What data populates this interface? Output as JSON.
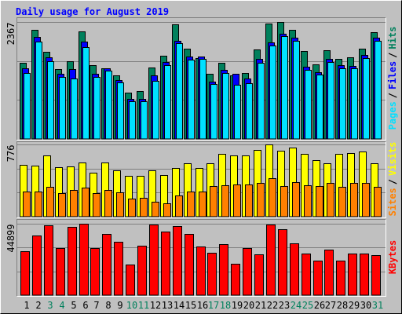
{
  "chart_data": {
    "type": "bar",
    "title": "Daily usage for August 2019",
    "categories": [
      "1",
      "2",
      "3",
      "4",
      "5",
      "6",
      "7",
      "8",
      "9",
      "10",
      "11",
      "12",
      "13",
      "14",
      "15",
      "16",
      "17",
      "18",
      "19",
      "20",
      "21",
      "22",
      "23",
      "24",
      "25",
      "26",
      "27",
      "28",
      "29",
      "30",
      "31"
    ],
    "category_colors": [
      "#000000",
      "#000000",
      "#00805c",
      "#00805c",
      "#000000",
      "#000000",
      "#000000",
      "#000000",
      "#000000",
      "#00805c",
      "#00805c",
      "#000000",
      "#000000",
      "#000000",
      "#000000",
      "#000000",
      "#00805c",
      "#00805c",
      "#000000",
      "#000000",
      "#000000",
      "#000000",
      "#000000",
      "#00805c",
      "#00805c",
      "#000000",
      "#000000",
      "#000000",
      "#000000",
      "#000000",
      "#00805c"
    ],
    "legend_separator": "/",
    "panels": [
      {
        "ylim": [
          0,
          2367
        ],
        "yticks": [
          2367
        ],
        "series": [
          {
            "name": "Hits",
            "color": "#00805c",
            "values": [
              1541,
              2208,
              1763,
              1414,
              1573,
              2176,
              1493,
              1430,
              1287,
              937,
              969,
              1446,
              1684,
              2319,
              1827,
              1636,
              1319,
              1541,
              1287,
              1334,
              1811,
              2335,
              2367,
              2208,
              1779,
              1509,
              1795,
              1620,
              1652,
              1827,
              2160
            ]
          },
          {
            "name": "Files",
            "color": "#0000ff",
            "values": [
              1430,
              2065,
              1652,
              1318,
              1414,
              1970,
              1318,
              1430,
              1191,
              811,
              811,
              1287,
              1557,
              1986,
              1668,
              1668,
              1160,
              1398,
              1319,
              1223,
              1620,
              1954,
              2129,
              2049,
              1462,
              1350,
              1620,
              1493,
              1477,
              1700,
              2049
            ]
          },
          {
            "name": "Pages",
            "color": "#00e0ff",
            "values": [
              1334,
              1970,
              1573,
              1255,
              1223,
              1859,
              1255,
              1382,
              1144,
              763,
              763,
              1176,
              1493,
              1938,
              1604,
              1620,
              1112,
              1334,
              1096,
              1128,
              1541,
              1890,
              2081,
              1986,
              1398,
              1303,
              1557,
              1430,
              1430,
              1636,
              1986
            ]
          }
        ]
      },
      {
        "ylim": [
          0,
          776
        ],
        "yticks": [
          776
        ],
        "series": [
          {
            "name": "Visits",
            "color": "#ffff00",
            "values": [
              557,
              548,
              658,
              531,
              540,
              582,
              472,
              582,
              497,
              438,
              438,
              497,
              447,
              523,
              573,
              523,
              573,
              674,
              658,
              658,
              717,
              776,
              708,
              742,
              674,
              607,
              573,
              674,
              683,
              700,
              573
            ]
          },
          {
            "name": "Sites",
            "color": "#ff8000",
            "values": [
              270,
              270,
              320,
              253,
              287,
              312,
              253,
              287,
              261,
              194,
              202,
              160,
              143,
              228,
              270,
              270,
              329,
              337,
              346,
              346,
              362,
              413,
              329,
              371,
              337,
              329,
              362,
              320,
              362,
              362,
              320
            ]
          }
        ]
      },
      {
        "ylim": [
          0,
          44899
        ],
        "yticks": [
          44899
        ],
        "series": [
          {
            "name": "KBytes",
            "color": "#ff0000",
            "values": [
              27444,
              37416,
              43903,
              29437,
              42905,
              44899,
              29437,
              38414,
              33427,
              19458,
              30933,
              44400,
              39914,
              43405,
              38414,
              30434,
              26443,
              31931,
              19957,
              29437,
              25445,
              44404,
              41411,
              32430,
              25944,
              21953,
              28438,
              21953,
              25944,
              25944,
              24946
            ]
          }
        ]
      }
    ]
  }
}
